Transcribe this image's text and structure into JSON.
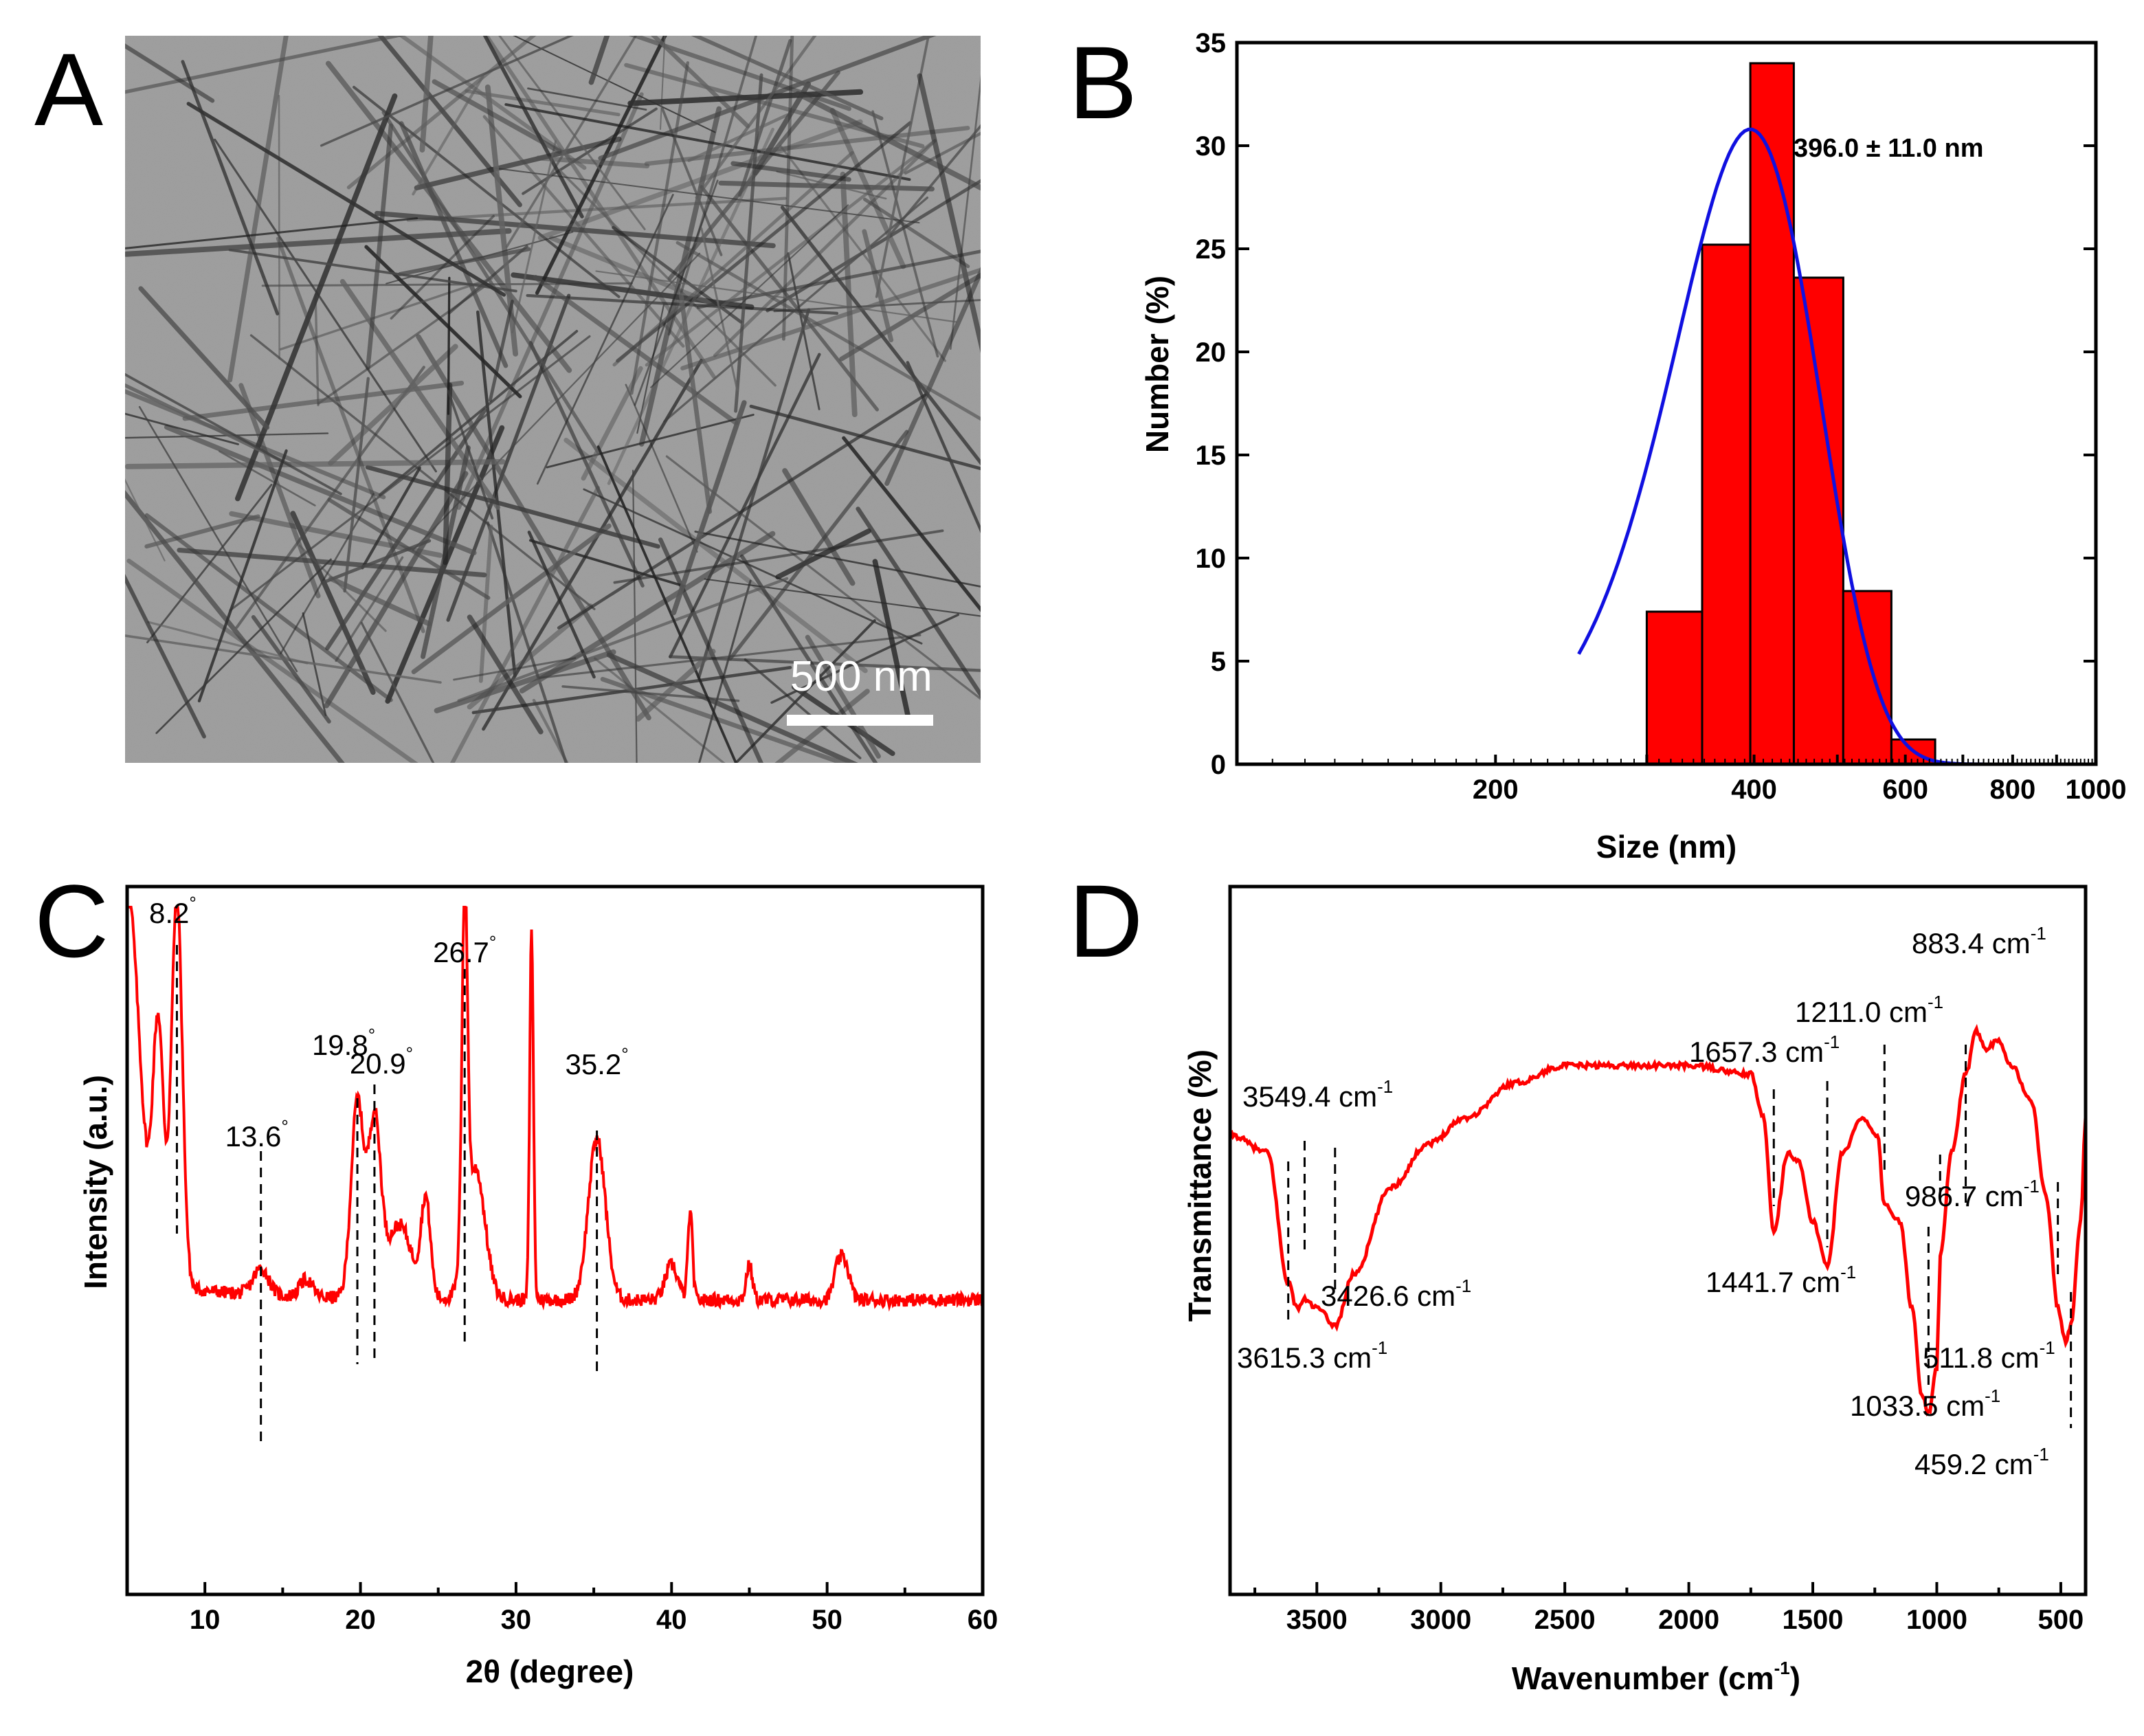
{
  "panels": [
    {
      "letter": "A",
      "type": "micrograph",
      "scale_bar_label": "500 nm"
    },
    {
      "letter": "B",
      "chart_index": 0
    },
    {
      "letter": "C",
      "chart_index": 1
    },
    {
      "letter": "D",
      "chart_index": 2
    }
  ],
  "chart_data": [
    {
      "type": "bar",
      "panel": "B",
      "title": "",
      "xlabel": "Size (nm)",
      "ylabel": "Number (%)",
      "x_scale": "log",
      "xlim": [
        100,
        1000
      ],
      "ylim": [
        0,
        35
      ],
      "x_ticks": [
        200,
        400,
        600,
        800,
        1000
      ],
      "y_ticks": [
        0,
        5,
        10,
        15,
        20,
        25,
        30,
        35
      ],
      "bins": [
        {
          "from": 300,
          "to": 348,
          "value": 7.4
        },
        {
          "from": 348,
          "to": 396,
          "value": 25.2
        },
        {
          "from": 396,
          "to": 445,
          "value": 34.0
        },
        {
          "from": 445,
          "to": 508,
          "value": 23.6
        },
        {
          "from": 508,
          "to": 578,
          "value": 8.4
        },
        {
          "from": 578,
          "to": 650,
          "value": 1.2
        }
      ],
      "fit": {
        "type": "gaussian",
        "center": 396,
        "sigma": 78,
        "amplitude": 30.8,
        "color": "#1010e0"
      },
      "annotation": "396.0 ± 11.0 nm",
      "bar_color": "#ff0000"
    },
    {
      "type": "line",
      "panel": "C",
      "title": "",
      "xlabel": "2θ (degree)",
      "ylabel": "Intensity (a.u.)",
      "xlim": [
        5,
        60
      ],
      "x_ticks": [
        10,
        20,
        30,
        40,
        50,
        60
      ],
      "y_ticks": [],
      "line_color": "#ff0000",
      "baseline": 0.1,
      "peaks": [
        {
          "x": 5.0,
          "h": 0.9,
          "w": 0.8
        },
        {
          "x": 7.0,
          "h": 0.58,
          "w": 0.35
        },
        {
          "x": 8.2,
          "h": 0.9,
          "w": 0.35
        },
        {
          "x": 13.6,
          "h": 0.06,
          "w": 0.5
        },
        {
          "x": 16.5,
          "h": 0.04,
          "w": 0.4
        },
        {
          "x": 19.8,
          "h": 0.45,
          "w": 0.4
        },
        {
          "x": 20.9,
          "h": 0.4,
          "w": 0.4
        },
        {
          "x": 22.5,
          "h": 0.17,
          "w": 0.8
        },
        {
          "x": 24.2,
          "h": 0.22,
          "w": 0.3
        },
        {
          "x": 26.7,
          "h": 0.82,
          "w": 0.18
        },
        {
          "x": 27.4,
          "h": 0.3,
          "w": 0.6
        },
        {
          "x": 31.0,
          "h": 0.85,
          "w": 0.12
        },
        {
          "x": 35.2,
          "h": 0.37,
          "w": 0.55
        },
        {
          "x": 40.0,
          "h": 0.08,
          "w": 0.4
        },
        {
          "x": 41.2,
          "h": 0.2,
          "w": 0.15
        },
        {
          "x": 45.0,
          "h": 0.08,
          "w": 0.2
        },
        {
          "x": 50.7,
          "h": 0.07,
          "w": 0.3
        },
        {
          "x": 51.2,
          "h": 0.07,
          "w": 0.3
        }
      ],
      "peak_labels": [
        {
          "text": "8.2",
          "unit": "°",
          "x": 8.2
        },
        {
          "text": "13.6",
          "unit": "°",
          "x": 13.6
        },
        {
          "text": "19.8",
          "unit": "°",
          "x": 19.8
        },
        {
          "text": "20.9",
          "unit": "°",
          "x": 20.9
        },
        {
          "text": "26.7",
          "unit": "°",
          "x": 26.7
        },
        {
          "text": "35.2",
          "unit": "°",
          "x": 35.2
        }
      ]
    },
    {
      "type": "line",
      "panel": "D",
      "title": "",
      "xlabel_main": "Wavenumber (cm",
      "xlabel_sup": "-1",
      "xlabel_end": ")",
      "ylabel": "Transmittance (%)",
      "xlim": [
        3850,
        400
      ],
      "x_ticks": [
        3500,
        3000,
        2500,
        2000,
        1500,
        1000,
        500
      ],
      "y_ticks": [],
      "line_color": "#ff0000",
      "points": [
        [
          3850,
          0.72
        ],
        [
          3700,
          0.7
        ],
        [
          3615,
          0.55
        ],
        [
          3580,
          0.52
        ],
        [
          3549,
          0.53
        ],
        [
          3500,
          0.52
        ],
        [
          3426,
          0.5
        ],
        [
          3350,
          0.56
        ],
        [
          3200,
          0.66
        ],
        [
          3050,
          0.71
        ],
        [
          2900,
          0.74
        ],
        [
          2700,
          0.78
        ],
        [
          2500,
          0.8
        ],
        [
          2300,
          0.8
        ],
        [
          2000,
          0.8
        ],
        [
          1750,
          0.79
        ],
        [
          1700,
          0.74
        ],
        [
          1657,
          0.61
        ],
        [
          1600,
          0.7
        ],
        [
          1560,
          0.69
        ],
        [
          1500,
          0.62
        ],
        [
          1441,
          0.57
        ],
        [
          1380,
          0.7
        ],
        [
          1300,
          0.74
        ],
        [
          1240,
          0.72
        ],
        [
          1211,
          0.64
        ],
        [
          1150,
          0.62
        ],
        [
          1100,
          0.52
        ],
        [
          1060,
          0.42
        ],
        [
          1033,
          0.4
        ],
        [
          1000,
          0.45
        ],
        [
          986,
          0.58
        ],
        [
          940,
          0.7
        ],
        [
          883,
          0.79
        ],
        [
          840,
          0.84
        ],
        [
          800,
          0.82
        ],
        [
          750,
          0.83
        ],
        [
          700,
          0.8
        ],
        [
          620,
          0.76
        ],
        [
          560,
          0.65
        ],
        [
          511,
          0.52
        ],
        [
          480,
          0.48
        ],
        [
          459,
          0.5
        ],
        [
          420,
          0.62
        ],
        [
          400,
          0.74
        ]
      ],
      "peak_labels": [
        {
          "label": "3615.3 cm",
          "sup": "-1",
          "x": 3615.3
        },
        {
          "label": "3549.4 cm",
          "sup": "-1",
          "x": 3549.4
        },
        {
          "label": "3426.6 cm",
          "sup": "-1",
          "x": 3426.6
        },
        {
          "label": "1657.3 cm",
          "sup": "-1",
          "x": 1657.3
        },
        {
          "label": "1441.7 cm",
          "sup": "-1",
          "x": 1441.7
        },
        {
          "label": "1211.0 cm",
          "sup": "-1",
          "x": 1211.0
        },
        {
          "label": "1033.5 cm",
          "sup": "-1",
          "x": 1033.5
        },
        {
          "label": "986.7 cm",
          "sup": "-1",
          "x": 986.7
        },
        {
          "label": "883.4 cm",
          "sup": "-1",
          "x": 883.4
        },
        {
          "label": "511.8 cm",
          "sup": "-1",
          "x": 511.8
        },
        {
          "label": "459.2 cm",
          "sup": "-1",
          "x": 459.2
        }
      ]
    }
  ]
}
